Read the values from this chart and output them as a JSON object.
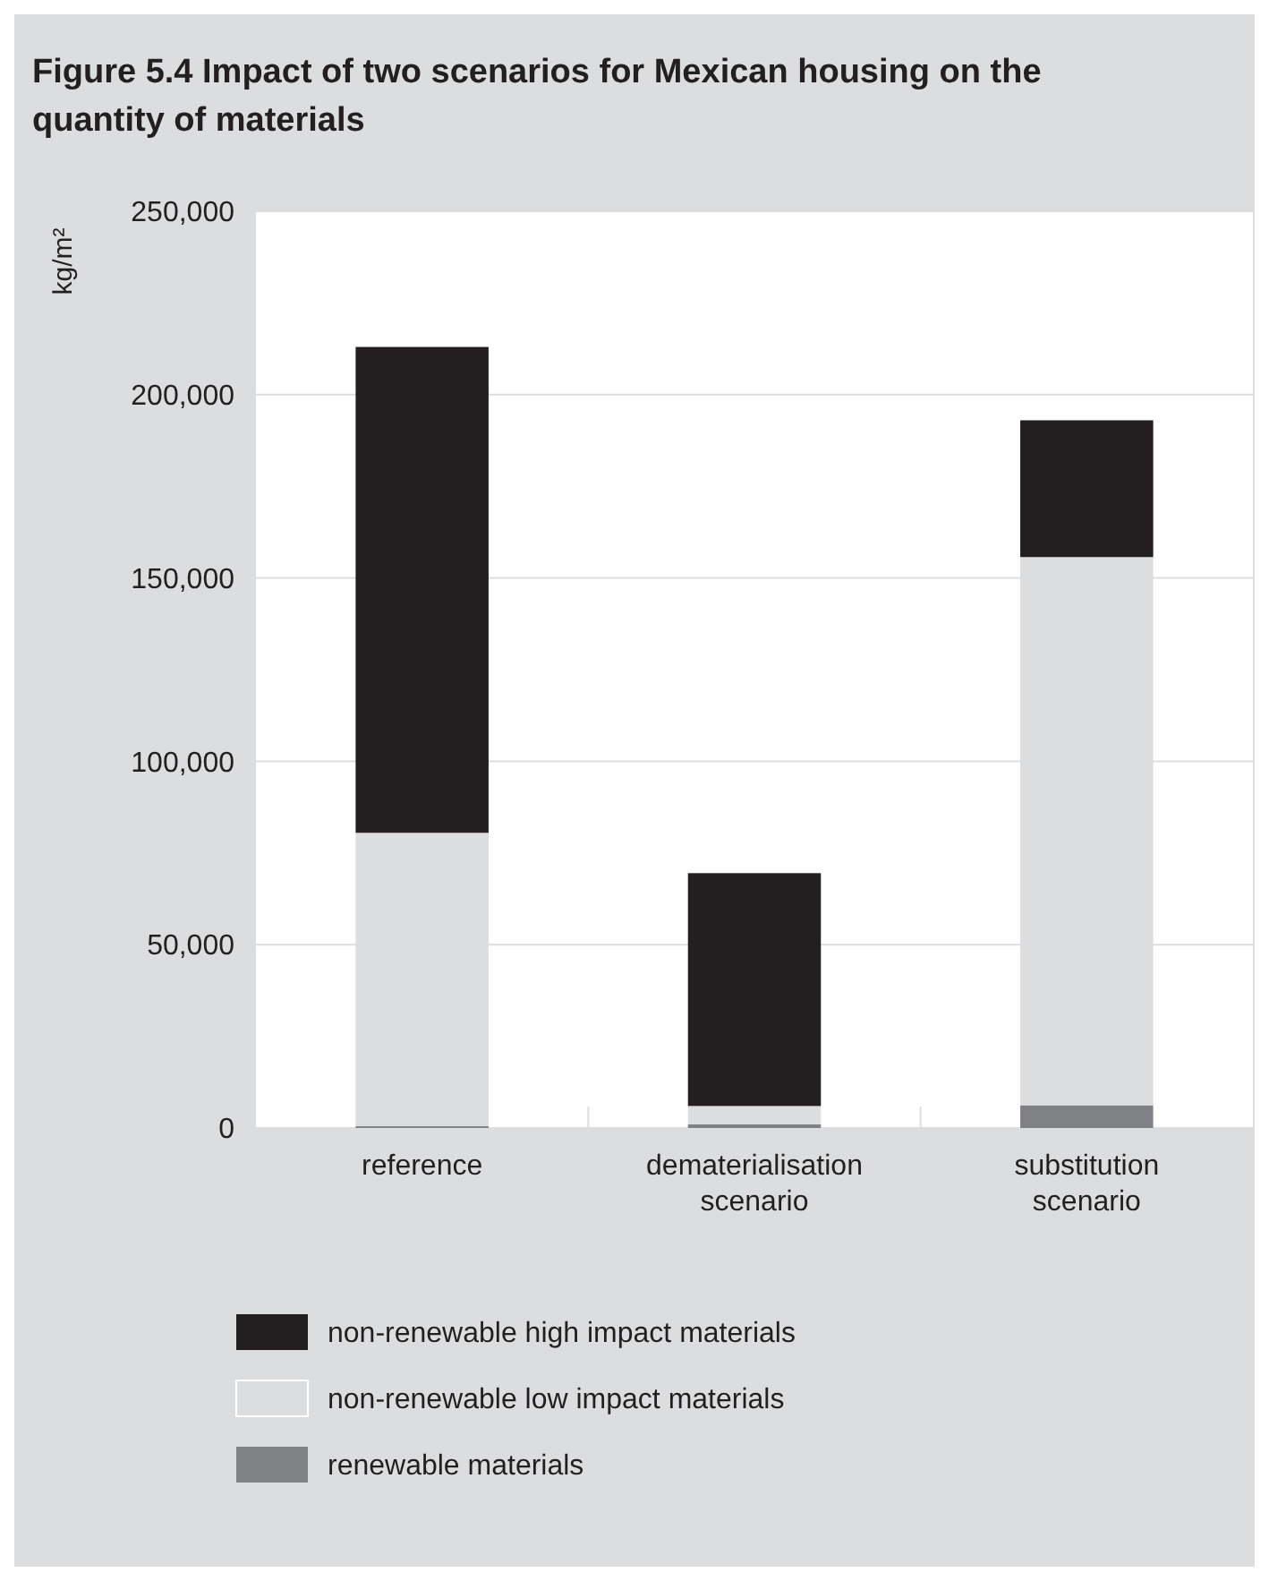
{
  "chart_data": {
    "type": "bar",
    "stacked": true,
    "title": "Figure 5.4  Impact of two scenarios for Mexican housing on the quantity of materials",
    "ylabel": "kg/m²",
    "categories": [
      "reference",
      "dematerialisation scenario",
      "substitution scenario"
    ],
    "series": [
      {
        "name": "renewable materials",
        "color": "#808184",
        "values": [
          500,
          1000,
          6200
        ]
      },
      {
        "name": "non-renewable low impact materials",
        "color": "#dcdddf",
        "values": [
          80000,
          5000,
          149500
        ]
      },
      {
        "name": "non-renewable high impact materials",
        "color": "#231f20",
        "values": [
          132500,
          63500,
          37300
        ]
      }
    ],
    "ylim": [
      0,
      250000
    ],
    "yticks": [
      {
        "value": 0,
        "label": "0"
      },
      {
        "value": 50000,
        "label": "50,000"
      },
      {
        "value": 100000,
        "label": "100,000"
      },
      {
        "value": 150000,
        "label": "150,000"
      },
      {
        "value": 200000,
        "label": "200,000"
      },
      {
        "value": 250000,
        "label": "250,000"
      }
    ],
    "grid": "y",
    "legend": "bottom"
  }
}
